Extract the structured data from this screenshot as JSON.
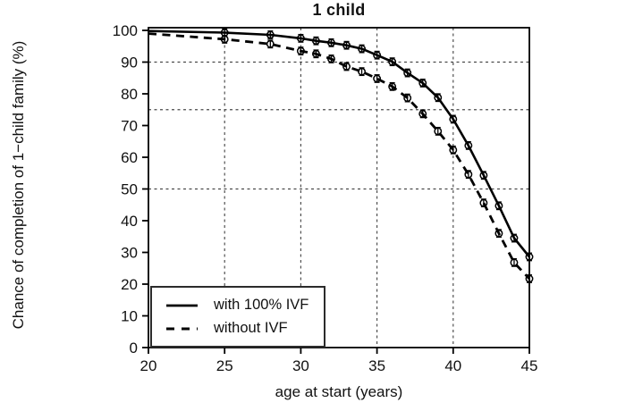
{
  "title": "1 child",
  "axes": {
    "x_label": "age at start (years)",
    "y_label": "Chance of completion of 1−child family (%)",
    "x_ticks": [
      20,
      25,
      30,
      35,
      40,
      45
    ],
    "y_ticks": [
      0,
      10,
      20,
      30,
      40,
      50,
      60,
      70,
      80,
      90,
      100
    ]
  },
  "legend": {
    "items": [
      {
        "label": "with 100% IVF",
        "line_style": "solid"
      },
      {
        "label": "without IVF",
        "line_style": "dashed"
      }
    ]
  },
  "colors": {
    "line": "#000000",
    "grid": "#4a4a4a",
    "background": "#ffffff"
  },
  "chart_data": {
    "type": "line",
    "title": "1 child",
    "xlabel": "age at start (years)",
    "ylabel": "Chance of completion of 1-child family (%)",
    "xlim": [
      20,
      45
    ],
    "ylim": [
      0,
      100
    ],
    "grid": {
      "vertical_at_x": [
        25,
        30,
        35,
        40
      ],
      "horizontal_at_y": [
        50,
        75,
        90
      ],
      "style": "dashed"
    },
    "legend_position": "bottom-left",
    "x": [
      20,
      25,
      28,
      30,
      31,
      32,
      33,
      34,
      35,
      36,
      37,
      38,
      39,
      40,
      41,
      42,
      43,
      44,
      45
    ],
    "series": [
      {
        "name": "with 100% IVF",
        "line_style": "solid",
        "marker": "open-circle",
        "marker_start_age": 25,
        "error_bar_pct": 1.2,
        "values": [
          99.8,
          99.3,
          98.6,
          97.5,
          96.7,
          96.1,
          95.3,
          94.2,
          92.2,
          90.1,
          86.6,
          83.4,
          78.8,
          72.0,
          63.7,
          54.3,
          44.7,
          34.5,
          28.6
        ]
      },
      {
        "name": "without IVF",
        "line_style": "dashed",
        "marker": "open-circle",
        "marker_start_age": 25,
        "error_bar_pct": 1.2,
        "values": [
          99.0,
          97.2,
          95.7,
          93.5,
          92.6,
          91.0,
          88.6,
          87.0,
          84.8,
          82.3,
          78.7,
          73.7,
          68.2,
          62.3,
          54.6,
          45.6,
          36.0,
          26.8,
          21.7
        ]
      }
    ]
  }
}
